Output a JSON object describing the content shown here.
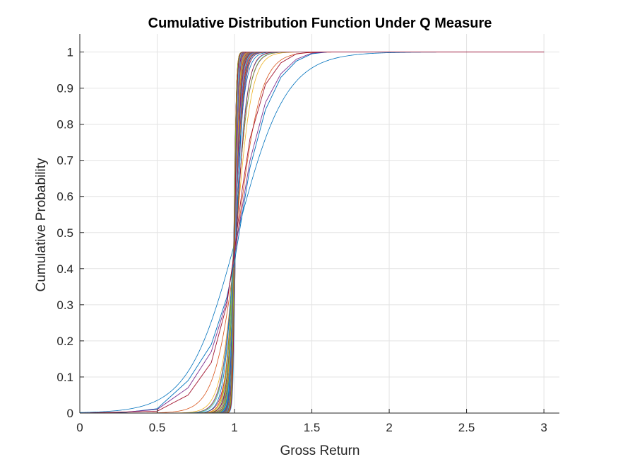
{
  "chart_data": {
    "type": "line",
    "title": "Cumulative Distribution Function Under Q Measure",
    "xlabel": "Gross Return",
    "ylabel": "Cumulative Probability",
    "xlim": [
      0,
      3.1
    ],
    "ylim": [
      0,
      1.05
    ],
    "xticks": [
      0,
      0.5,
      1,
      1.5,
      2,
      2.5,
      3
    ],
    "xtick_labels": [
      "0",
      "0.5",
      "1",
      "1.5",
      "2",
      "2.5",
      "3"
    ],
    "yticks": [
      0,
      0.1,
      0.2,
      0.3,
      0.4,
      0.5,
      0.6,
      0.7,
      0.8,
      0.9,
      1
    ],
    "ytick_labels": [
      "0",
      "0.1",
      "0.2",
      "0.3",
      "0.4",
      "0.5",
      "0.6",
      "0.7",
      "0.8",
      "0.9",
      "1"
    ],
    "grid": true,
    "legend": "none",
    "series_colors": [
      "#0072BD",
      "#D95319",
      "#EDB120",
      "#7E2F8E",
      "#77AC30",
      "#4DBEEE",
      "#A2142F"
    ],
    "x_domain": [
      0,
      3
    ],
    "family": {
      "count": 140,
      "description_center_x": 1.0,
      "center_value": 0.45,
      "steepness_range": [
        6,
        150
      ]
    },
    "series": [
      {
        "x": [
          0,
          0.3,
          0.5,
          0.7,
          0.85,
          0.95,
          1.0,
          1.05,
          1.1,
          1.2,
          1.3,
          1.4,
          1.5,
          1.6,
          3.0
        ],
        "y": [
          0,
          0.002,
          0.012,
          0.09,
          0.19,
          0.32,
          0.42,
          0.55,
          0.68,
          0.84,
          0.93,
          0.975,
          0.995,
          1.0,
          1.0
        ]
      },
      {
        "x": [
          0,
          0.3,
          0.5,
          0.7,
          0.85,
          0.95,
          1.0,
          1.05,
          1.1,
          1.2,
          1.3,
          1.4,
          1.5,
          1.6,
          3.0
        ],
        "y": [
          0,
          0.003,
          0.01,
          0.07,
          0.17,
          0.31,
          0.44,
          0.57,
          0.7,
          0.86,
          0.94,
          0.98,
          0.997,
          1.0,
          1.0
        ]
      },
      {
        "x": [
          0,
          0.5,
          0.7,
          0.85,
          0.95,
          1.0,
          1.05,
          1.1,
          1.2,
          1.3,
          1.4,
          1.5,
          3.0
        ],
        "y": [
          0,
          0.005,
          0.05,
          0.14,
          0.3,
          0.45,
          0.62,
          0.76,
          0.91,
          0.97,
          0.995,
          1.0,
          1.0
        ]
      }
    ]
  }
}
